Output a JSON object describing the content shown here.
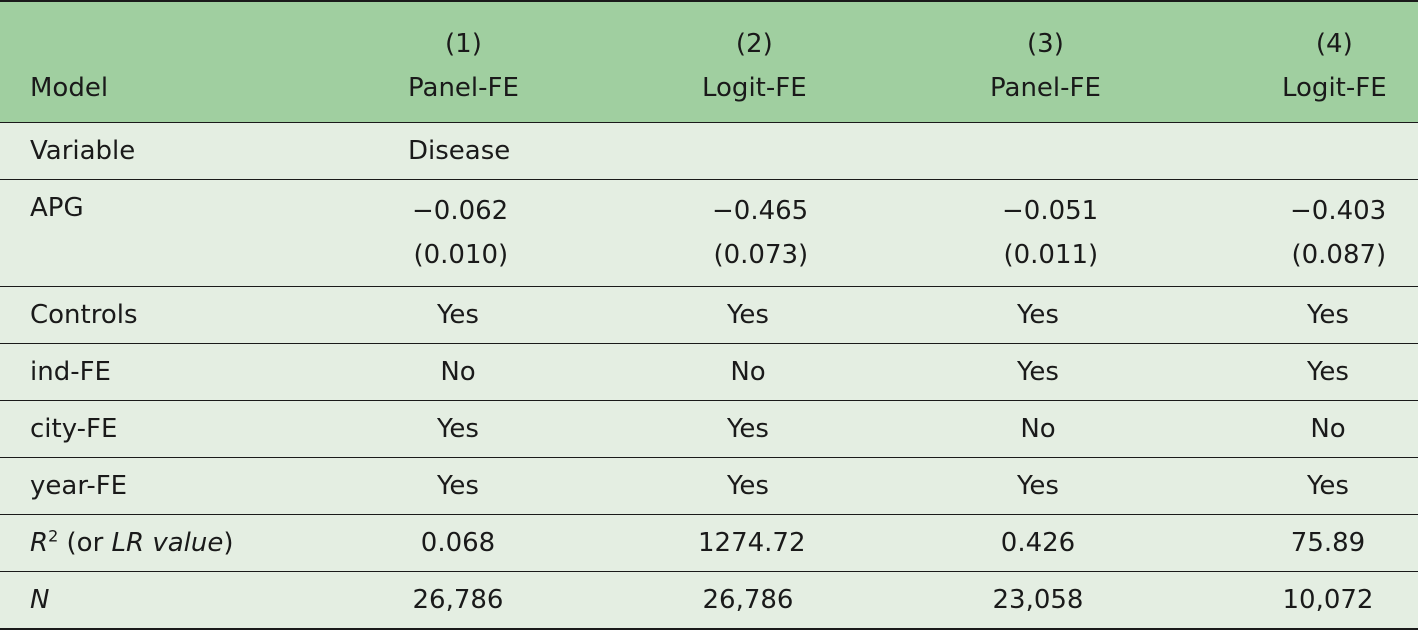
{
  "header": {
    "model_label": "Model",
    "columns": [
      {
        "number": "(1)",
        "method": "Panel-FE"
      },
      {
        "number": "(2)",
        "method": "Logit-FE"
      },
      {
        "number": "(3)",
        "method": "Panel-FE"
      },
      {
        "number": "(4)",
        "method": "Logit-FE"
      }
    ]
  },
  "variable_row": {
    "label": "Variable",
    "dependent": "Disease"
  },
  "apg_row": {
    "label": "APG",
    "coefs": [
      "−0.062",
      "−0.465",
      "−0.051",
      "−0.403"
    ],
    "ses": [
      "(0.010)",
      "(0.073)",
      "(0.011)",
      "(0.087)"
    ]
  },
  "rows": [
    {
      "label": "Controls",
      "values": [
        "Yes",
        "Yes",
        "Yes",
        "Yes"
      ]
    },
    {
      "label": "ind-FE",
      "values": [
        "No",
        "No",
        "Yes",
        "Yes"
      ]
    },
    {
      "label": "city-FE",
      "values": [
        "Yes",
        "Yes",
        "No",
        "No"
      ]
    },
    {
      "label": "year-FE",
      "values": [
        "Yes",
        "Yes",
        "Yes",
        "Yes"
      ]
    }
  ],
  "r2_row": {
    "label_r": "R",
    "label_sup": "2",
    "label_mid": " (or ",
    "label_lr": "LR value",
    "label_end": ")",
    "values": [
      "0.068",
      "1274.72",
      "0.426",
      "75.89"
    ]
  },
  "n_row": {
    "label": "N",
    "values": [
      "26,786",
      "26,786",
      "23,058",
      "10,072"
    ]
  }
}
